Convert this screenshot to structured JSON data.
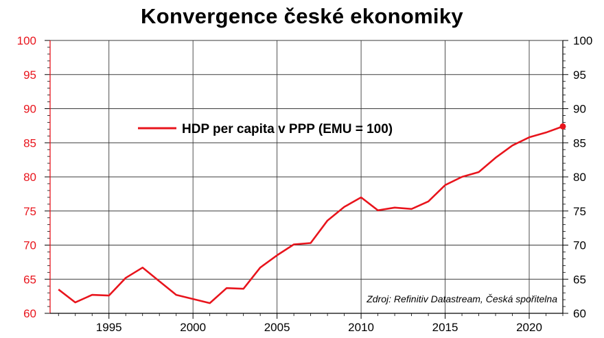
{
  "chart_data": {
    "type": "line",
    "title": "Konvergence české ekonomiky",
    "xlabel": "",
    "ylabel": "",
    "x": [
      1992,
      1993,
      1994,
      1995,
      1996,
      1997,
      1998,
      1999,
      2000,
      2001,
      2002,
      2003,
      2004,
      2005,
      2006,
      2007,
      2008,
      2009,
      2010,
      2011,
      2012,
      2013,
      2014,
      2015,
      2016,
      2017,
      2018,
      2019,
      2020,
      2021,
      2022
    ],
    "series": [
      {
        "name": "HDP per capita v PPP (EMU = 100)",
        "color": "#e8141c",
        "values": [
          63.5,
          61.6,
          62.7,
          62.6,
          65.2,
          66.7,
          64.7,
          62.7,
          62.1,
          61.5,
          63.7,
          63.6,
          66.7,
          68.5,
          70.1,
          70.3,
          73.6,
          75.6,
          77.0,
          75.1,
          75.5,
          75.3,
          76.4,
          78.8,
          80.0,
          80.7,
          82.8,
          84.6,
          85.8,
          86.5,
          87.4
        ]
      }
    ],
    "xlim": [
      1991.5,
      2022
    ],
    "ylim": [
      60,
      100
    ],
    "x_ticks": [
      "1995",
      "2000",
      "2005",
      "2010",
      "2015",
      "2020"
    ],
    "y_ticks_left": [
      "100",
      "95",
      "90",
      "85",
      "80",
      "75",
      "70",
      "65",
      "60"
    ],
    "y_ticks_right": [
      "100",
      "95",
      "90",
      "85",
      "80",
      "75",
      "70",
      "65",
      "60"
    ],
    "left_axis_color": "#e8141c",
    "grid": true,
    "legend": "top-center",
    "annotation": "Zdroj: Refinitiv Datastream, Česká spořitelna"
  }
}
